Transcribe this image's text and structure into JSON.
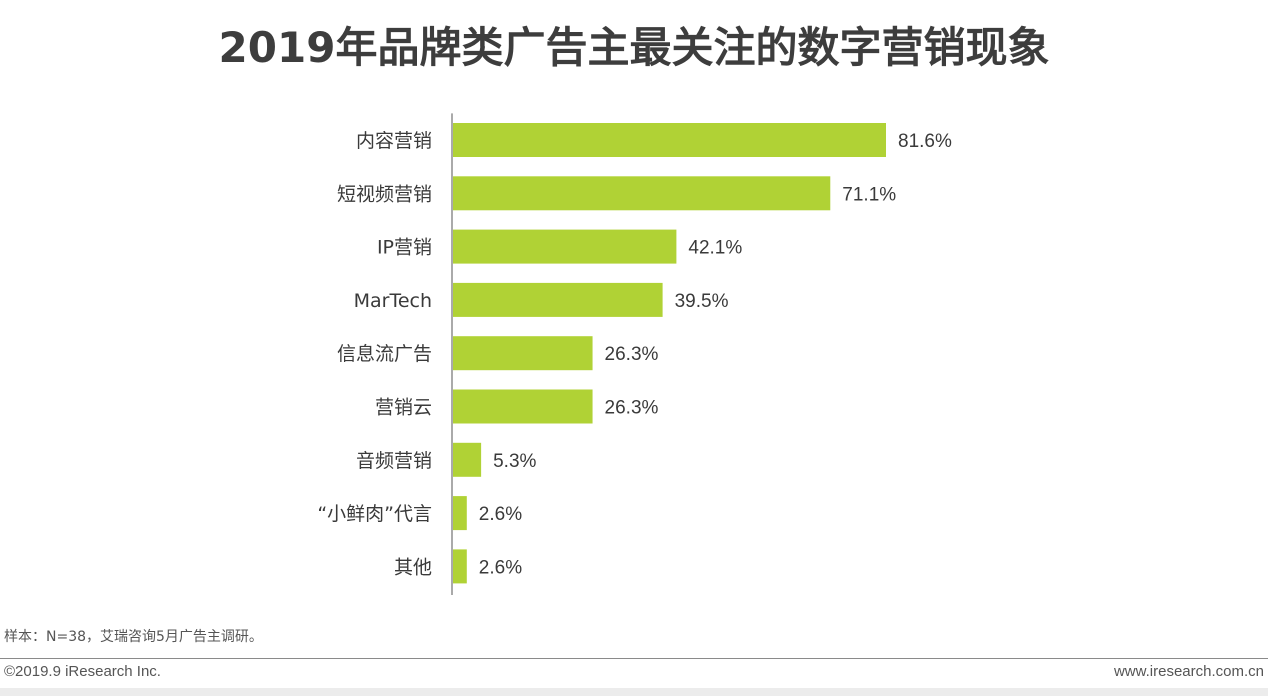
{
  "page": {
    "title": "2019年品牌类广告主最关注的数字营销现象",
    "footnote": "样本：N=38，艾瑞咨询5月广告主调研。",
    "copyright": "©2019.9 iResearch Inc.",
    "website": "www.iresearch.com.cn"
  },
  "colors": {
    "bar": "#b0d235",
    "axis": "#555555",
    "text": "#3a3a3a"
  },
  "chart_data": {
    "type": "bar",
    "orientation": "horizontal",
    "title": "2019年品牌类广告主最关注的数字营销现象",
    "xlabel": "",
    "ylabel": "",
    "xlim": [
      0,
      100
    ],
    "grid": false,
    "categories": [
      "内容营销",
      "短视频营销",
      "IP营销",
      "MarTech",
      "信息流广告",
      "营销云",
      "音频营销",
      "“小鲜肉”代言",
      "其他"
    ],
    "values": [
      81.6,
      71.1,
      42.1,
      39.5,
      26.3,
      26.3,
      5.3,
      2.6,
      2.6
    ],
    "value_labels": [
      "81.6%",
      "71.1%",
      "42.1%",
      "39.5%",
      "26.3%",
      "26.3%",
      "5.3%",
      "2.6%",
      "2.6%"
    ]
  }
}
